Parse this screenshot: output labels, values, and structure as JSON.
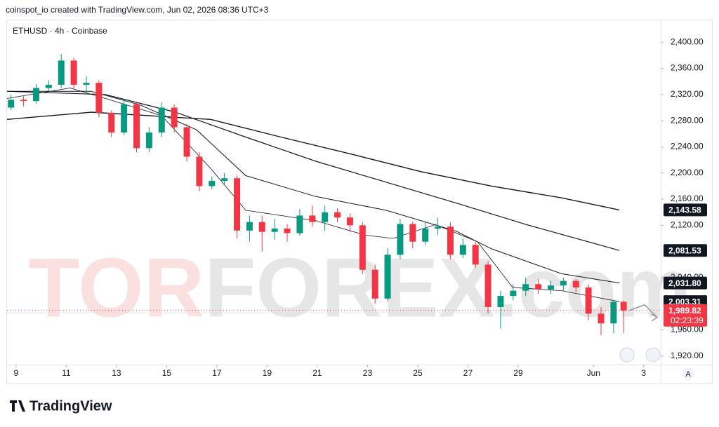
{
  "header": {
    "caption": "coinspot_io created with TradingView.com, Jun 02, 2026 08:36 UTC+3"
  },
  "footer": {
    "brand": "TradingView",
    "auto_button": "A"
  },
  "chart_data": {
    "type": "candlestick",
    "symbol": "ETHUSD · 4h · Coinbase",
    "watermark": {
      "left": "TOR",
      "right": "FOREX.com"
    },
    "up_color": "#089981",
    "down_color": "#f23645",
    "candles": {
      "x": [
        8.8,
        9.3,
        9.8,
        10.3,
        10.8,
        11.3,
        11.8,
        12.3,
        12.8,
        13.3,
        13.8,
        14.3,
        14.8,
        15.3,
        15.8,
        16.3,
        16.8,
        17.3,
        17.8,
        18.3,
        18.8,
        19.3,
        19.8,
        20.3,
        20.8,
        21.3,
        21.8,
        22.3,
        22.8,
        23.3,
        23.8,
        24.3,
        24.8,
        25.3,
        25.8,
        26.3,
        26.8,
        27.3,
        27.8,
        28.3,
        28.8,
        29.3,
        29.8,
        30.3,
        30.8,
        31.3,
        31.8,
        32.3,
        32.8,
        33.2
      ],
      "open": [
        2300,
        2312,
        2310,
        2330,
        2335,
        2372,
        2335,
        2338,
        2292,
        2262,
        2305,
        2238,
        2262,
        2300,
        2270,
        2225,
        2180,
        2188,
        2192,
        2112,
        2125,
        2110,
        2115,
        2108,
        2135,
        2125,
        2140,
        2132,
        2120,
        2052,
        2008,
        2075,
        2122,
        2095,
        2115,
        2118,
        2075,
        2090,
        2060,
        1995,
        2012,
        2020,
        2030,
        2022,
        2028,
        2035,
        2025,
        1985,
        1970,
        2003
      ],
      "high": [
        2320,
        2318,
        2336,
        2342,
        2382,
        2376,
        2348,
        2342,
        2296,
        2312,
        2308,
        2270,
        2308,
        2305,
        2275,
        2232,
        2195,
        2200,
        2196,
        2135,
        2135,
        2130,
        2122,
        2145,
        2150,
        2150,
        2146,
        2138,
        2125,
        2060,
        2085,
        2130,
        2126,
        2125,
        2132,
        2125,
        2100,
        2095,
        2065,
        2020,
        2030,
        2040,
        2038,
        2035,
        2040,
        2038,
        2030,
        1995,
        2006,
        2005
      ],
      "low": [
        2296,
        2302,
        2306,
        2325,
        2330,
        2328,
        2320,
        2285,
        2255,
        2258,
        2232,
        2232,
        2255,
        2262,
        2218,
        2172,
        2175,
        2182,
        2100,
        2095,
        2080,
        2098,
        2095,
        2104,
        2118,
        2112,
        2125,
        2110,
        2045,
        2000,
        2004,
        2068,
        2085,
        2090,
        2105,
        2068,
        2070,
        2055,
        1985,
        1962,
        2005,
        2012,
        2015,
        2015,
        2020,
        2018,
        1975,
        1952,
        1955,
        1955
      ],
      "close": [
        2312,
        2310,
        2330,
        2335,
        2372,
        2335,
        2338,
        2292,
        2262,
        2305,
        2238,
        2262,
        2300,
        2270,
        2225,
        2180,
        2188,
        2192,
        2112,
        2125,
        2110,
        2115,
        2108,
        2135,
        2125,
        2140,
        2132,
        2120,
        2052,
        2008,
        2075,
        2122,
        2095,
        2115,
        2118,
        2075,
        2090,
        2060,
        1995,
        2012,
        2020,
        2030,
        2022,
        2028,
        2035,
        2025,
        1985,
        1970,
        2003,
        1989.82
      ]
    },
    "last_price_label": "1,989.82",
    "countdown": "02:23:39",
    "series": [
      {
        "color": "#131722",
        "width": 1.4,
        "last_label": "2,143.58",
        "x": [
          8.64,
          11.99,
          16.75,
          19.55,
          22.34,
          25.14,
          27.94,
          30.73,
          33.03
        ],
        "values": [
          2282,
          2293,
          2282,
          2255,
          2229,
          2202,
          2180,
          2162,
          2143.58
        ]
      },
      {
        "color": "#131722",
        "width": 1.2,
        "last_label": "2,081.53",
        "x": [
          8.64,
          12.55,
          15.35,
          18.15,
          20.94,
          23.74,
          26.54,
          29.34,
          33.03
        ],
        "values": [
          2325,
          2320,
          2293,
          2255,
          2218,
          2186,
          2154,
          2121,
          2081.53
        ]
      },
      {
        "color": "#131722",
        "width": 1,
        "last_label": "2,031.80",
        "x": [
          8.64,
          11.99,
          13.95,
          16.19,
          18.15,
          20.94,
          23.74,
          26.54,
          27.94,
          30.73,
          33.03
        ],
        "values": [
          2325,
          2325,
          2304,
          2266,
          2196,
          2164,
          2143,
          2111,
          2084,
          2046,
          2031.8
        ]
      },
      {
        "color": "#131722",
        "width": 0.8,
        "last_label": "2,003.31",
        "x": [
          8.64,
          11.15,
          12.55,
          14.79,
          16.75,
          18.15,
          20.94,
          22.9,
          24.02,
          25.7,
          27.38,
          28.78,
          30.73,
          33.03
        ],
        "values": [
          2314,
          2330,
          2314,
          2288,
          2207,
          2143,
          2127,
          2105,
          2100,
          2121,
          2095,
          2025,
          2020,
          2003.31
        ]
      }
    ],
    "xlim": [
      8.64,
      34.65
    ],
    "ylim": [
      1907,
      2426
    ],
    "xticks": [
      9,
      11,
      13,
      15,
      17,
      19,
      21,
      23,
      25,
      27,
      29,
      {
        "value": 32,
        "label": "Jun"
      },
      {
        "value": 34,
        "label": "3"
      }
    ],
    "yticks": [
      {
        "value": 1920,
        "label": "1,920.00"
      },
      {
        "value": 1960,
        "label": "1,960.00"
      },
      {
        "value": 2040,
        "label": "2,040.00"
      },
      {
        "value": 2120,
        "label": "2,120.00"
      },
      {
        "value": 2160,
        "label": "2,160.00"
      },
      {
        "value": 2200,
        "label": "2,200.00"
      },
      {
        "value": 2240,
        "label": "2,240.00"
      },
      {
        "value": 2280,
        "label": "2,280.00"
      },
      {
        "value": 2320,
        "label": "2,320.00"
      },
      {
        "value": 2360,
        "label": "2,360.00"
      },
      {
        "value": 2400,
        "label": "2,400.00"
      }
    ],
    "grid": false
  }
}
